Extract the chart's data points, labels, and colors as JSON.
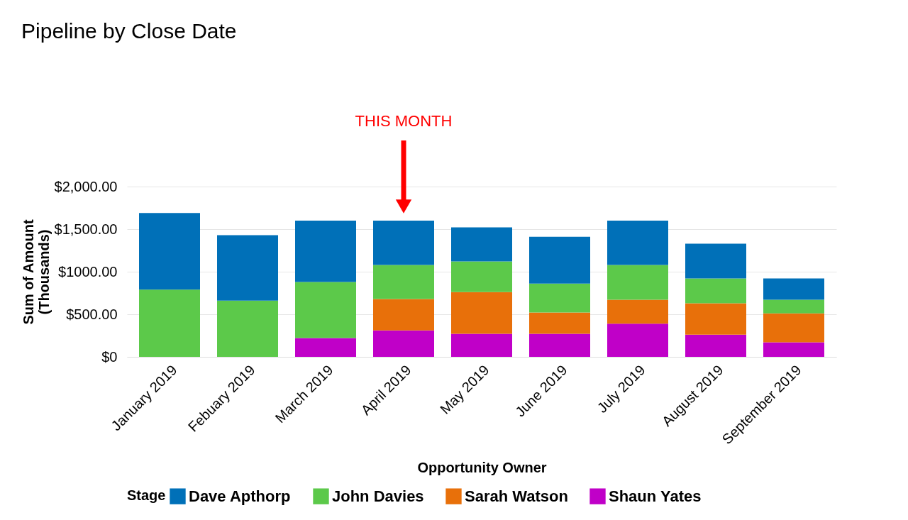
{
  "chart_data": {
    "type": "bar",
    "title": "Pipeline by Close Date",
    "xlabel": "Opportunity Owner",
    "ylabel": "Sum of Amount (Thousands)",
    "legend_title": "Stage",
    "categories": [
      "January 2019",
      "Febuary 2019",
      "March 2019",
      "April 2019",
      "May 2019",
      "June 2019",
      "July 2019",
      "August 2019",
      "September 2019"
    ],
    "stacked": true,
    "series": [
      {
        "name": "Shaun Yates",
        "color": "#c000c8",
        "values": [
          0,
          0,
          220,
          310,
          270,
          270,
          390,
          260,
          170
        ]
      },
      {
        "name": "Sarah Watson",
        "color": "#e8700a",
        "values": [
          0,
          0,
          0,
          370,
          490,
          250,
          280,
          370,
          340
        ]
      },
      {
        "name": "John Davies",
        "color": "#5cc94a",
        "values": [
          790,
          660,
          660,
          400,
          360,
          340,
          410,
          290,
          160
        ]
      },
      {
        "name": "Dave Apthorp",
        "color": "#0070b8",
        "values": [
          900,
          770,
          720,
          520,
          400,
          550,
          520,
          410,
          250
        ]
      }
    ],
    "ylim": [
      0,
      2000
    ],
    "yticks": [
      {
        "value": 0,
        "label": "$0"
      },
      {
        "value": 500,
        "label": "$500.00"
      },
      {
        "value": 1000,
        "label": "$1000.00"
      },
      {
        "value": 1500,
        "label": "$1,500.00"
      },
      {
        "value": 2000,
        "label": "$2,000.00"
      }
    ],
    "grid": "y",
    "legend": "bottom",
    "annotations": [
      "THIS MONTH"
    ]
  }
}
